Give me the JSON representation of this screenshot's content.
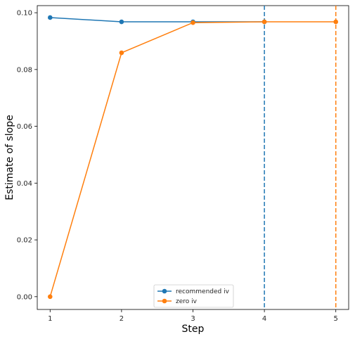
{
  "chart_data": {
    "type": "line",
    "xlabel": "Step",
    "ylabel": "Estimate of slope",
    "x": [
      1,
      2,
      3,
      4,
      5
    ],
    "x_ticks": [
      "1",
      "2",
      "3",
      "4",
      "5"
    ],
    "y_ticks": [
      "0.00",
      "0.02",
      "0.04",
      "0.06",
      "0.08",
      "0.10"
    ],
    "xlim": [
      0.82,
      5.18
    ],
    "ylim": [
      -0.0045,
      0.1025
    ],
    "grid": false,
    "legend_position": "lower-center",
    "series": [
      {
        "name": "recommended iv",
        "color": "#1f77b4",
        "x": [
          1,
          2,
          3,
          4
        ],
        "values": [
          0.0983,
          0.0968,
          0.0968,
          0.0968
        ]
      },
      {
        "name": "zero iv",
        "color": "#ff7f0e",
        "x": [
          1,
          2,
          3,
          4,
          5
        ],
        "values": [
          0.0,
          0.0859,
          0.0965,
          0.0968,
          0.0968
        ]
      }
    ],
    "vlines": [
      {
        "x": 4,
        "color": "#1f77b4",
        "style": "dashed"
      },
      {
        "x": 5,
        "color": "#ff7f0e",
        "style": "dashed"
      }
    ]
  }
}
